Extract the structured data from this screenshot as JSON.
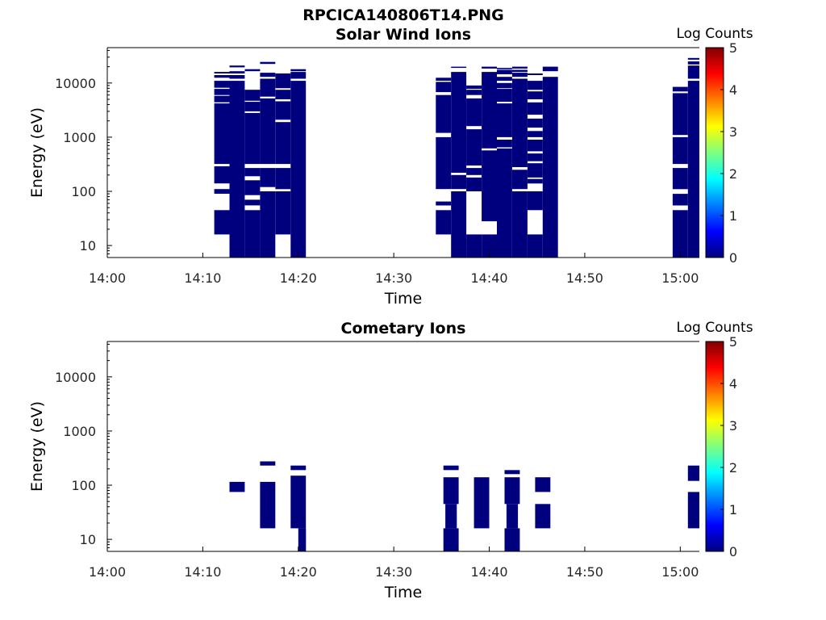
{
  "figure_title": "RPCICA140806T14.PNG",
  "chart_data": [
    {
      "type": "heatmap",
      "title": "Solar Wind Ions",
      "xlabel": "Time",
      "ylabel": "Energy (eV)",
      "y_scale": "log",
      "ylim": [
        6,
        45000
      ],
      "xlim": [
        "14:00",
        "15:02"
      ],
      "x_ticks": [
        "14:00",
        "14:10",
        "14:20",
        "14:30",
        "14:40",
        "14:50",
        "15:00"
      ],
      "y_ticks": [
        "10",
        "100",
        "1000",
        "10000"
      ],
      "colorbar": {
        "label": "Log Counts",
        "ticks": [
          "0",
          "1",
          "2",
          "3",
          "4",
          "5"
        ],
        "range": [
          0,
          5
        ]
      },
      "color_scale": [
        "#00007f",
        "#0000ff",
        "#007fff",
        "#00ffff",
        "#7fff7f",
        "#ffff00",
        "#ff7f00",
        "#ff0000",
        "#7f0000"
      ],
      "cell_value_log_counts": 0,
      "columns": [
        {
          "t_start": "14:11:12",
          "t_end": "14:12:48",
          "bands": [
            [
              16,
              45
            ],
            [
              90,
              110
            ],
            [
              140,
              290
            ],
            [
              320,
              4200
            ],
            [
              4400,
              5800
            ],
            [
              6000,
              7800
            ],
            [
              8200,
              11000
            ],
            [
              12500,
              14000
            ],
            [
              15000,
              16000
            ]
          ]
        },
        {
          "t_start": "14:12:48",
          "t_end": "14:14:24",
          "bands": [
            [
              6,
              11000
            ],
            [
              12000,
              14000
            ],
            [
              15000,
              16500
            ],
            [
              19500,
              21000
            ]
          ]
        },
        {
          "t_start": "14:14:24",
          "t_end": "14:16:00",
          "bands": [
            [
              6,
              45
            ],
            [
              55,
              70
            ],
            [
              85,
              160
            ],
            [
              190,
              270
            ],
            [
              320,
              2800
            ],
            [
              3000,
              4500
            ],
            [
              4700,
              7500
            ],
            [
              16500,
              18000
            ]
          ]
        },
        {
          "t_start": "14:16:00",
          "t_end": "14:17:36",
          "bands": [
            [
              6,
              100
            ],
            [
              120,
              270
            ],
            [
              320,
              5200
            ],
            [
              5600,
              12000
            ],
            [
              13000,
              15500
            ],
            [
              22500,
              24500
            ]
          ]
        },
        {
          "t_start": "14:17:36",
          "t_end": "14:19:12",
          "bands": [
            [
              16,
              100
            ],
            [
              110,
              270
            ],
            [
              320,
              1900
            ],
            [
              2100,
              4600
            ],
            [
              5000,
              7500
            ],
            [
              8000,
              15000
            ]
          ]
        },
        {
          "t_start": "14:19:12",
          "t_end": "14:20:48",
          "bands": [
            [
              6,
              11000
            ],
            [
              12000,
              16000
            ],
            [
              16500,
              18000
            ]
          ]
        },
        {
          "t_start": "14:34:24",
          "t_end": "14:36:00",
          "bands": [
            [
              16,
              45
            ],
            [
              55,
              65
            ],
            [
              110,
              1000
            ],
            [
              1200,
              6000
            ],
            [
              6800,
              10500
            ],
            [
              11000,
              12500
            ]
          ]
        },
        {
          "t_start": "14:36:00",
          "t_end": "14:37:36",
          "bands": [
            [
              6,
              100
            ],
            [
              110,
              200
            ],
            [
              220,
              16000
            ],
            [
              19000,
              20000
            ]
          ]
        },
        {
          "t_start": "14:37:36",
          "t_end": "14:39:12",
          "bands": [
            [
              6,
              16
            ],
            [
              100,
              180
            ],
            [
              200,
              270
            ],
            [
              300,
              1400
            ],
            [
              1600,
              5200
            ],
            [
              6000,
              7500
            ],
            [
              7800,
              9000
            ]
          ]
        },
        {
          "t_start": "14:39:12",
          "t_end": "14:40:48",
          "bands": [
            [
              6,
              16
            ],
            [
              28,
              570
            ],
            [
              620,
              16000
            ],
            [
              18500,
              20000
            ]
          ]
        },
        {
          "t_start": "14:40:48",
          "t_end": "14:42:24",
          "bands": [
            [
              6,
              620
            ],
            [
              650,
              900
            ],
            [
              1000,
              4200
            ],
            [
              4500,
              7800
            ],
            [
              8000,
              10000
            ],
            [
              11000,
              13000
            ],
            [
              14500,
              17500
            ],
            [
              18000,
              19000
            ]
          ]
        },
        {
          "t_start": "14:42:24",
          "t_end": "14:44:00",
          "bands": [
            [
              6,
              100
            ],
            [
              110,
              250
            ],
            [
              280,
              12000
            ],
            [
              13000,
              15500
            ],
            [
              16000,
              17500
            ],
            [
              18500,
              20000
            ]
          ]
        },
        {
          "t_start": "14:44:00",
          "t_end": "14:45:36",
          "bands": [
            [
              6,
              16
            ],
            [
              45,
              100
            ],
            [
              140,
              170
            ],
            [
              180,
              330
            ],
            [
              360,
              500
            ],
            [
              550,
              900
            ],
            [
              1000,
              1300
            ],
            [
              1500,
              2200
            ],
            [
              2600,
              4400
            ],
            [
              5000,
              7000
            ],
            [
              7500,
              11000
            ],
            [
              14000,
              15000
            ]
          ]
        },
        {
          "t_start": "14:45:36",
          "t_end": "14:47:12",
          "bands": [
            [
              6,
              13000
            ],
            [
              16500,
              20000
            ]
          ]
        },
        {
          "t_start": "14:59:12",
          "t_end": "15:00:48",
          "bands": [
            [
              6,
              45
            ],
            [
              55,
              90
            ],
            [
              110,
              270
            ],
            [
              320,
              1000
            ],
            [
              1100,
              6500
            ],
            [
              7000,
              8500
            ]
          ]
        },
        {
          "t_start": "15:00:48",
          "t_end": "15:02:00",
          "bands": [
            [
              6,
              11000
            ],
            [
              12000,
              21000
            ],
            [
              22000,
              25000
            ],
            [
              27000,
              29000
            ]
          ]
        }
      ]
    },
    {
      "type": "heatmap",
      "title": "Cometary Ions",
      "xlabel": "Time",
      "ylabel": "Energy (eV)",
      "y_scale": "log",
      "ylim": [
        6,
        45000
      ],
      "xlim": [
        "14:00",
        "15:02"
      ],
      "x_ticks": [
        "14:00",
        "14:10",
        "14:20",
        "14:30",
        "14:40",
        "14:50",
        "15:00"
      ],
      "y_ticks": [
        "10",
        "100",
        "1000",
        "10000"
      ],
      "colorbar": {
        "label": "Log Counts",
        "ticks": [
          "0",
          "1",
          "2",
          "3",
          "4",
          "5"
        ],
        "range": [
          0,
          5
        ]
      },
      "color_scale": [
        "#00007f",
        "#0000ff",
        "#007fff",
        "#00ffff",
        "#7fff7f",
        "#ffff00",
        "#ff7f00",
        "#ff0000",
        "#7f0000"
      ],
      "cell_value_log_counts": 0,
      "columns": [
        {
          "t_start": "14:12:48",
          "t_end": "14:14:24",
          "bands": [
            [
              75,
              115
            ]
          ]
        },
        {
          "t_start": "14:16:00",
          "t_end": "14:17:36",
          "bands": [
            [
              16,
              115
            ],
            [
              230,
              275
            ]
          ]
        },
        {
          "t_start": "14:19:12",
          "t_end": "14:20:48",
          "bands": [
            [
              16,
              150
            ],
            [
              190,
              230
            ]
          ]
        },
        {
          "t_start": "14:20:00",
          "t_end": "14:20:48",
          "bands": [
            [
              6,
              16
            ]
          ]
        },
        {
          "t_start": "14:35:12",
          "t_end": "14:36:48",
          "bands": [
            [
              6,
              16
            ],
            [
              45,
              140
            ],
            [
              190,
              230
            ]
          ]
        },
        {
          "t_start": "14:35:24",
          "t_end": "14:36:36",
          "bands": [
            [
              16,
              45
            ]
          ]
        },
        {
          "t_start": "14:38:24",
          "t_end": "14:40:00",
          "bands": [
            [
              16,
              140
            ]
          ]
        },
        {
          "t_start": "14:41:36",
          "t_end": "14:43:12",
          "bands": [
            [
              6,
              16
            ],
            [
              45,
              140
            ],
            [
              160,
              190
            ]
          ]
        },
        {
          "t_start": "14:41:48",
          "t_end": "14:43:00",
          "bands": [
            [
              16,
              45
            ]
          ]
        },
        {
          "t_start": "14:44:48",
          "t_end": "14:46:24",
          "bands": [
            [
              16,
              45
            ],
            [
              75,
              140
            ]
          ]
        },
        {
          "t_start": "15:00:48",
          "t_end": "15:02:00",
          "bands": [
            [
              16,
              75
            ],
            [
              120,
              230
            ]
          ]
        }
      ]
    }
  ]
}
